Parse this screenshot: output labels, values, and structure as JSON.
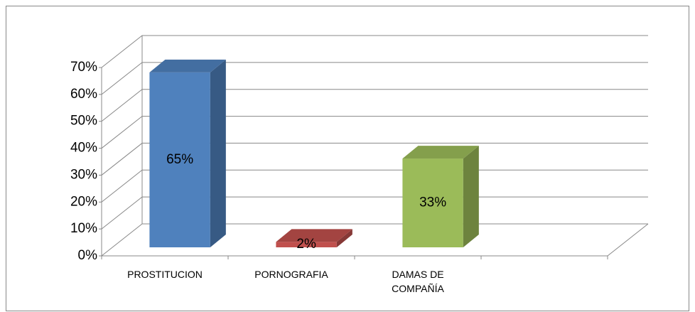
{
  "chart_data": {
    "type": "bar3d",
    "categories": [
      "PROSTITUCION",
      "PORNOGRAFIA",
      "DAMAS DE COMPAÑÍA",
      null
    ],
    "values": [
      65,
      2,
      33,
      null
    ],
    "value_labels": [
      "65%",
      "2%",
      "33%",
      null
    ],
    "colors": [
      "#4f81bd",
      "#c0504d",
      "#9bbb59",
      null
    ],
    "ylim": [
      0,
      70
    ],
    "yticks": [
      {
        "value": 0,
        "label": "0%"
      },
      {
        "value": 10,
        "label": "10%"
      },
      {
        "value": 20,
        "label": "20%"
      },
      {
        "value": 30,
        "label": "30%"
      },
      {
        "value": 40,
        "label": "40%"
      },
      {
        "value": 50,
        "label": "50%"
      },
      {
        "value": 60,
        "label": "60%"
      },
      {
        "value": 70,
        "label": "70%"
      }
    ],
    "grid": true
  }
}
